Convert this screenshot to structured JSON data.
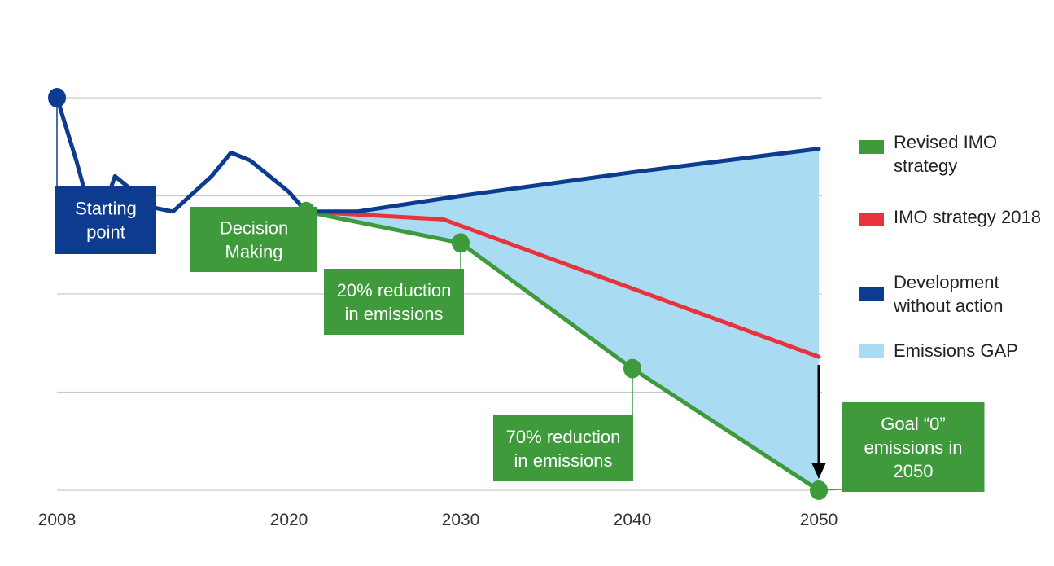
{
  "chart_data": {
    "type": "line",
    "x_ticks": [
      "2008",
      "2020",
      "2030",
      "2040",
      "2050"
    ],
    "ylim": [
      0,
      100
    ],
    "grid": true,
    "legend_position": "right",
    "series": [
      {
        "name": "Development without action",
        "color": "#0d3b8f",
        "points": [
          [
            2008,
            100
          ],
          [
            2009,
            84
          ],
          [
            2010,
            66
          ],
          [
            2011,
            80
          ],
          [
            2012,
            76
          ],
          [
            2013,
            72
          ],
          [
            2014,
            71
          ],
          [
            2016,
            80
          ],
          [
            2017,
            86
          ],
          [
            2018,
            84
          ],
          [
            2020,
            76
          ],
          [
            2021,
            71
          ],
          [
            2024,
            71
          ],
          [
            2030,
            75
          ],
          [
            2040,
            81
          ],
          [
            2050,
            87
          ]
        ]
      },
      {
        "name": "IMO strategy 2018",
        "color": "#e8323c",
        "points": [
          [
            2021,
            71
          ],
          [
            2029,
            69
          ],
          [
            2050,
            34
          ]
        ]
      },
      {
        "name": "Revised IMO strategy",
        "color": "#3f9a3c",
        "points": [
          [
            2021,
            71
          ],
          [
            2030,
            63
          ],
          [
            2040,
            31
          ],
          [
            2050,
            0
          ]
        ]
      }
    ],
    "gap_area": {
      "name": "Emissions GAP",
      "color": "#a9dcf3",
      "upper_series": "Development without action",
      "lower_series": "Revised IMO strategy",
      "from_x": 2021,
      "to_x": 2050
    },
    "markers": [
      {
        "x": 2008,
        "y": 100,
        "color": "#0d3b8f"
      },
      {
        "x": 2021,
        "y": 71,
        "color": "#3f9a3c"
      },
      {
        "x": 2030,
        "y": 63,
        "color": "#3f9a3c"
      },
      {
        "x": 2040,
        "y": 31,
        "color": "#3f9a3c"
      },
      {
        "x": 2050,
        "y": 0,
        "color": "#3f9a3c"
      }
    ],
    "annotations": [
      {
        "text": [
          "Starting",
          "point"
        ],
        "color": "#0d3b8f",
        "anchor": [
          2008,
          100
        ]
      },
      {
        "text": [
          "Decision",
          "Making"
        ],
        "color": "#3f9a3c",
        "anchor": [
          2021,
          71
        ]
      },
      {
        "text": [
          "20% reduction",
          "in emissions"
        ],
        "color": "#3f9a3c",
        "anchor": [
          2030,
          63
        ]
      },
      {
        "text": [
          "70% reduction",
          "in emissions"
        ],
        "color": "#3f9a3c",
        "anchor": [
          2040,
          31
        ]
      },
      {
        "text": [
          "Goal “0”",
          "emissions in",
          "2050"
        ],
        "color": "#3f9a3c",
        "anchor": [
          2050,
          0
        ]
      }
    ],
    "arrow": {
      "from": [
        2050,
        34
      ],
      "to": [
        2050,
        0
      ],
      "color": "#000000"
    }
  },
  "legend": [
    {
      "label": "Revised IMO strategy",
      "color": "#3f9a3c"
    },
    {
      "label": "IMO strategy 2018",
      "color": "#e8323c"
    },
    {
      "label": "Development without action",
      "color": "#0d3b8f"
    },
    {
      "label": "Emissions GAP",
      "color": "#a9dcf3"
    }
  ]
}
